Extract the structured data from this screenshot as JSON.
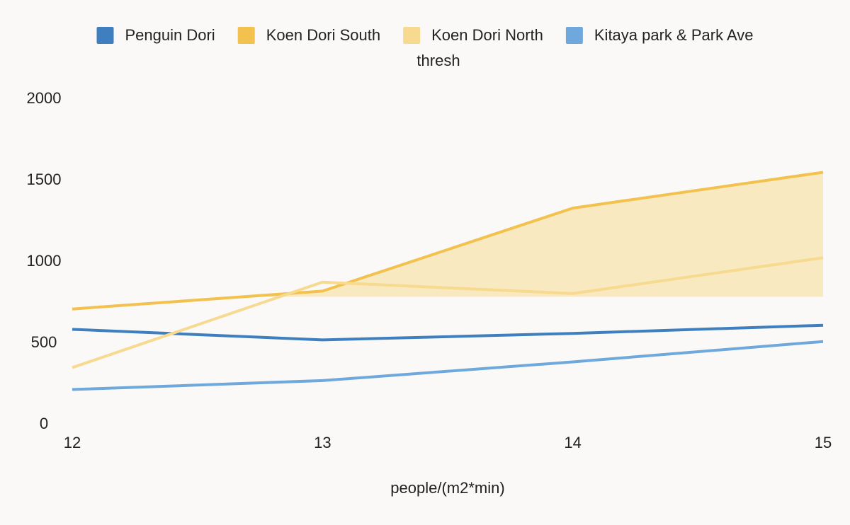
{
  "chart_data": {
    "type": "line",
    "x": [
      12,
      13,
      14,
      15
    ],
    "xlim": [
      12,
      15
    ],
    "xticks": [
      12,
      13,
      14,
      15
    ],
    "ylim": [
      0,
      2000
    ],
    "yticks": [
      0,
      500,
      1000,
      1500,
      2000
    ],
    "xlabel": "people/(m2*min)",
    "grid": false,
    "legend": "top",
    "series": [
      {
        "name": "Penguin Dori",
        "color": "#3f7fbf",
        "values": [
          585,
          520,
          560,
          610
        ]
      },
      {
        "name": "Koen Dori South",
        "color": "#f2c14e",
        "values": [
          710,
          820,
          1330,
          1550
        ]
      },
      {
        "name": "Koen Dori North",
        "color": "#f7d98f",
        "values": [
          350,
          875,
          805,
          1025
        ]
      },
      {
        "name": "Kitaya park & Park Ave",
        "color": "#6fa8dc",
        "values": [
          215,
          270,
          385,
          510
        ]
      }
    ],
    "threshold": {
      "name": "thresh",
      "value": 785,
      "series": 1,
      "color": "#f9e9c1"
    }
  }
}
